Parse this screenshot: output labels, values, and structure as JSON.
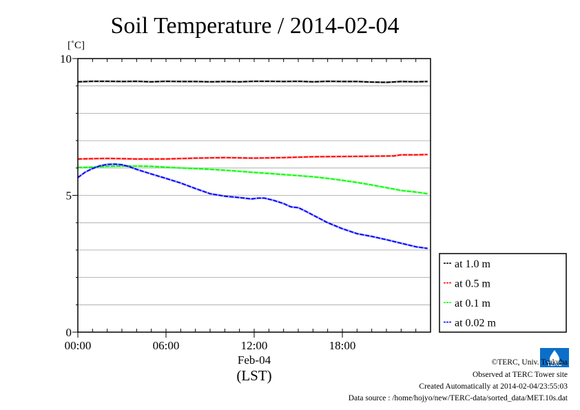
{
  "chart_data": {
    "type": "line",
    "title": "Soil Temperature / 2014-02-04",
    "ylabel": "[˚C]",
    "xlabel": "(LST)",
    "date_label": "Feb-04",
    "ylim": [
      0,
      10
    ],
    "xlim_hours": [
      0,
      24
    ],
    "y_ticks": [
      {
        "value": 0,
        "label": "0"
      },
      {
        "value": 5,
        "label": "5"
      },
      {
        "value": 10,
        "label": "10"
      }
    ],
    "y_minor_step": 1,
    "x_ticks": [
      {
        "value": 0,
        "label": "00:00"
      },
      {
        "value": 6,
        "label": "06:00"
      },
      {
        "value": 12,
        "label": "12:00"
      },
      {
        "value": 18,
        "label": "18:00"
      }
    ],
    "x_minor_step": 1,
    "grid": true,
    "legend_position": "right",
    "series": [
      {
        "name": "at 1.0 m",
        "color": "#000000",
        "points": [
          [
            0,
            9.15
          ],
          [
            1,
            9.17
          ],
          [
            2,
            9.17
          ],
          [
            3,
            9.16
          ],
          [
            4,
            9.17
          ],
          [
            5,
            9.15
          ],
          [
            6,
            9.17
          ],
          [
            7,
            9.16
          ],
          [
            8,
            9.16
          ],
          [
            9,
            9.15
          ],
          [
            10,
            9.16
          ],
          [
            11,
            9.15
          ],
          [
            12,
            9.17
          ],
          [
            13,
            9.17
          ],
          [
            14,
            9.16
          ],
          [
            15,
            9.17
          ],
          [
            16,
            9.15
          ],
          [
            17,
            9.17
          ],
          [
            18,
            9.16
          ],
          [
            19,
            9.16
          ],
          [
            20,
            9.14
          ],
          [
            21,
            9.13
          ],
          [
            22,
            9.16
          ],
          [
            23,
            9.15
          ],
          [
            23.8,
            9.16
          ]
        ]
      },
      {
        "name": "at 0.5 m",
        "color": "#ff0000",
        "points": [
          [
            0,
            6.33
          ],
          [
            2,
            6.35
          ],
          [
            4,
            6.33
          ],
          [
            6,
            6.33
          ],
          [
            8,
            6.36
          ],
          [
            10,
            6.38
          ],
          [
            12,
            6.36
          ],
          [
            14,
            6.38
          ],
          [
            16,
            6.41
          ],
          [
            18,
            6.42
          ],
          [
            20,
            6.43
          ],
          [
            21.5,
            6.44
          ],
          [
            22,
            6.48
          ],
          [
            23,
            6.48
          ],
          [
            23.8,
            6.49
          ]
        ]
      },
      {
        "name": "at 0.1 m",
        "color": "#00ff00",
        "points": [
          [
            0,
            6.02
          ],
          [
            1,
            6.03
          ],
          [
            2,
            6.06
          ],
          [
            3,
            6.07
          ],
          [
            4,
            6.07
          ],
          [
            5,
            6.06
          ],
          [
            6,
            6.03
          ],
          [
            7,
            6.0
          ],
          [
            8,
            5.98
          ],
          [
            9,
            5.95
          ],
          [
            10,
            5.92
          ],
          [
            11,
            5.88
          ],
          [
            12,
            5.84
          ],
          [
            13,
            5.8
          ],
          [
            14,
            5.76
          ],
          [
            15,
            5.72
          ],
          [
            16,
            5.68
          ],
          [
            17,
            5.62
          ],
          [
            18,
            5.55
          ],
          [
            19,
            5.47
          ],
          [
            20,
            5.38
          ],
          [
            21,
            5.28
          ],
          [
            22,
            5.18
          ],
          [
            23,
            5.12
          ],
          [
            23.8,
            5.06
          ]
        ]
      },
      {
        "name": "at 0.02 m",
        "color": "#0000ff",
        "points": [
          [
            0,
            5.65
          ],
          [
            0.5,
            5.85
          ],
          [
            1,
            5.98
          ],
          [
            1.5,
            6.08
          ],
          [
            2,
            6.13
          ],
          [
            2.5,
            6.14
          ],
          [
            3,
            6.12
          ],
          [
            3.5,
            6.05
          ],
          [
            4,
            5.95
          ],
          [
            5,
            5.78
          ],
          [
            6,
            5.62
          ],
          [
            7,
            5.45
          ],
          [
            8,
            5.25
          ],
          [
            9,
            5.06
          ],
          [
            10,
            4.97
          ],
          [
            11,
            4.92
          ],
          [
            11.8,
            4.87
          ],
          [
            12.3,
            4.9
          ],
          [
            12.7,
            4.9
          ],
          [
            13.3,
            4.82
          ],
          [
            14,
            4.7
          ],
          [
            14.5,
            4.58
          ],
          [
            15,
            4.55
          ],
          [
            15.5,
            4.42
          ],
          [
            16,
            4.28
          ],
          [
            17,
            4.0
          ],
          [
            18,
            3.78
          ],
          [
            19,
            3.6
          ],
          [
            20,
            3.5
          ],
          [
            21,
            3.38
          ],
          [
            22,
            3.25
          ],
          [
            23,
            3.12
          ],
          [
            23.8,
            3.06
          ]
        ]
      }
    ]
  },
  "credits": {
    "copyright": "©TERC, Univ. Tsukuba",
    "observed": "Observed at TERC Tower site",
    "created": "Created Automatically at 2014-02-04/23:55:03",
    "source": "Data source : /home/hojyo/new/TERC-data/sorted_data/MET.10s.dat"
  },
  "logo": {
    "text": "TERC",
    "color": "#0b6fc9"
  }
}
